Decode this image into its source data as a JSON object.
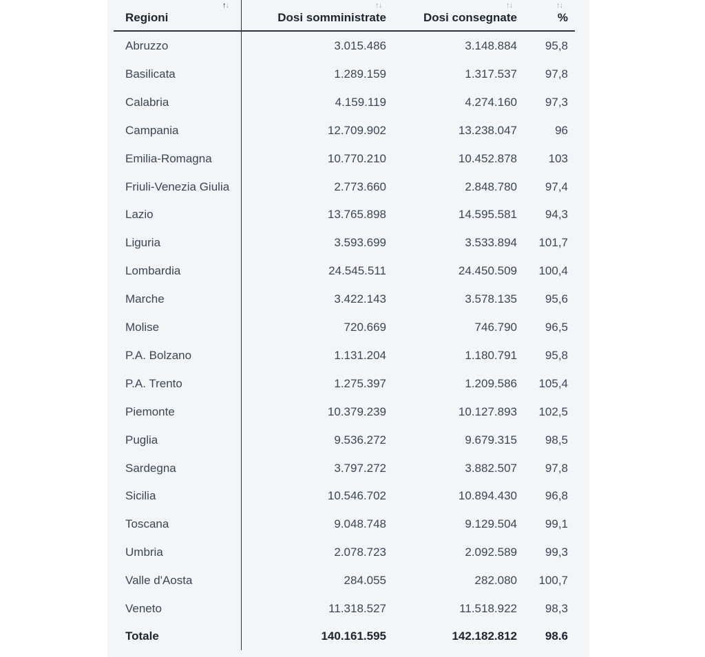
{
  "table": {
    "headers": {
      "region": "Regioni",
      "administered": "Dosi somministrate",
      "delivered": "Dosi consegnate",
      "percent": "%"
    },
    "sort_icons": {
      "region": "sort-asc-active-icon",
      "administered": "sort-icon",
      "delivered": "sort-icon",
      "percent": "sort-icon"
    },
    "rows": [
      {
        "region": "Abruzzo",
        "administered": "3.015.486",
        "delivered": "3.148.884",
        "percent": "95,8"
      },
      {
        "region": "Basilicata",
        "administered": "1.289.159",
        "delivered": "1.317.537",
        "percent": "97,8"
      },
      {
        "region": "Calabria",
        "administered": "4.159.119",
        "delivered": "4.274.160",
        "percent": "97,3"
      },
      {
        "region": "Campania",
        "administered": "12.709.902",
        "delivered": "13.238.047",
        "percent": "96"
      },
      {
        "region": "Emilia-Romagna",
        "administered": "10.770.210",
        "delivered": "10.452.878",
        "percent": "103"
      },
      {
        "region": "Friuli-Venezia Giulia",
        "administered": "2.773.660",
        "delivered": "2.848.780",
        "percent": "97,4"
      },
      {
        "region": "Lazio",
        "administered": "13.765.898",
        "delivered": "14.595.581",
        "percent": "94,3"
      },
      {
        "region": "Liguria",
        "administered": "3.593.699",
        "delivered": "3.533.894",
        "percent": "101,7"
      },
      {
        "region": "Lombardia",
        "administered": "24.545.511",
        "delivered": "24.450.509",
        "percent": "100,4"
      },
      {
        "region": "Marche",
        "administered": "3.422.143",
        "delivered": "3.578.135",
        "percent": "95,6"
      },
      {
        "region": "Molise",
        "administered": "720.669",
        "delivered": "746.790",
        "percent": "96,5"
      },
      {
        "region": "P.A. Bolzano",
        "administered": "1.131.204",
        "delivered": "1.180.791",
        "percent": "95,8"
      },
      {
        "region": "P.A. Trento",
        "administered": "1.275.397",
        "delivered": "1.209.586",
        "percent": "105,4"
      },
      {
        "region": "Piemonte",
        "administered": "10.379.239",
        "delivered": "10.127.893",
        "percent": "102,5"
      },
      {
        "region": "Puglia",
        "administered": "9.536.272",
        "delivered": "9.679.315",
        "percent": "98,5"
      },
      {
        "region": "Sardegna",
        "administered": "3.797.272",
        "delivered": "3.882.507",
        "percent": "97,8"
      },
      {
        "region": "Sicilia",
        "administered": "10.546.702",
        "delivered": "10.894.430",
        "percent": "96,8"
      },
      {
        "region": "Toscana",
        "administered": "9.048.748",
        "delivered": "9.129.504",
        "percent": "99,1"
      },
      {
        "region": "Umbria",
        "administered": "2.078.723",
        "delivered": "2.092.589",
        "percent": "99,3"
      },
      {
        "region": "Valle d'Aosta",
        "administered": "284.055",
        "delivered": "282.080",
        "percent": "100,7"
      },
      {
        "region": "Veneto",
        "administered": "11.318.527",
        "delivered": "11.518.922",
        "percent": "98,3"
      }
    ],
    "total": {
      "region": "Totale",
      "administered": "140.161.595",
      "delivered": "142.182.812",
      "percent": "98.6"
    }
  }
}
